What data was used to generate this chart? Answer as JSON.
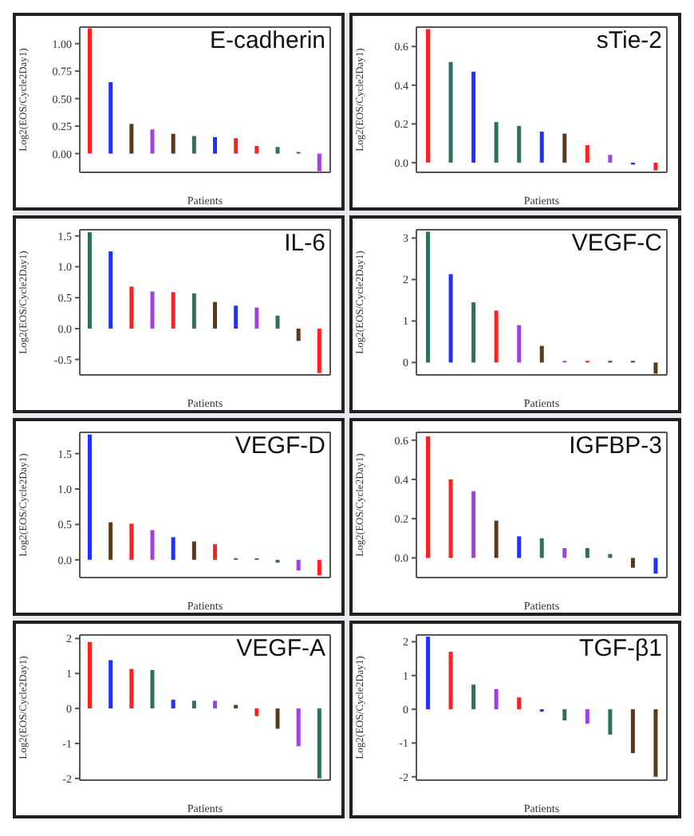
{
  "chart_data": [
    {
      "type": "bar",
      "title": "E-cadherin",
      "xlabel": "Patients",
      "ylabel": "Log2(EOS/Cycle2Day1)",
      "categories": [
        null,
        null,
        null,
        null,
        null,
        null,
        null,
        null,
        null,
        null,
        null,
        null
      ],
      "tick_labels": "y",
      "values": [
        1.14,
        0.65,
        0.27,
        0.22,
        0.18,
        0.16,
        0.15,
        0.14,
        0.07,
        0.06,
        0,
        -0.16
      ],
      "colors": [
        "#ff2020",
        "#2030ff",
        "#5a3a1a",
        "#a040e0",
        "#5a3a1a",
        "#2e7060",
        "#2030ff",
        "#ff2020",
        "#ff2020",
        "#2e7060",
        "#2e7060",
        "#a040e0"
      ],
      "ylim": [
        -0.17,
        1.15
      ],
      "yticks": [
        {
          "value": 0,
          "label": "0.00"
        },
        {
          "value": 0.25,
          "label": "0.25"
        },
        {
          "value": 0.5,
          "label": "0.50"
        },
        {
          "value": 0.75,
          "label": "0.75"
        },
        {
          "value": 1,
          "label": "1.00"
        }
      ],
      "grid": false
    },
    {
      "type": "bar",
      "title": "sTie-2",
      "xlabel": "Patients",
      "ylabel": "Log2(EOS/Cycle2Day1)",
      "categories": [
        null,
        null,
        null,
        null,
        null,
        null,
        null,
        null,
        null,
        null,
        null
      ],
      "tick_labels": "y",
      "values": [
        0.69,
        0.52,
        0.47,
        0.21,
        0.19,
        0.16,
        0.15,
        0.09,
        0.04,
        -0.01,
        -0.04
      ],
      "colors": [
        "#ff2020",
        "#2e7060",
        "#2030ff",
        "#2e7060",
        "#2e7060",
        "#2030ff",
        "#5a3a1a",
        "#ff2020",
        "#a040e0",
        "#2030ff",
        "#ff2020"
      ],
      "ylim": [
        -0.05,
        0.7
      ],
      "yticks": [
        {
          "value": 0,
          "label": "0.0"
        },
        {
          "value": 0.2,
          "label": "0.2"
        },
        {
          "value": 0.4,
          "label": "0.4"
        },
        {
          "value": 0.6,
          "label": "0.6"
        }
      ],
      "grid": false
    },
    {
      "type": "bar",
      "title": "IL-6",
      "xlabel": "Patients",
      "ylabel": "Log2(EOS/Cycle2Day1)",
      "categories": [
        null,
        null,
        null,
        null,
        null,
        null,
        null,
        null,
        null,
        null,
        null,
        null
      ],
      "tick_labels": "y",
      "values": [
        1.56,
        1.25,
        0.68,
        0.6,
        0.59,
        0.57,
        0.43,
        0.37,
        0.34,
        0.21,
        -0.2,
        -0.72
      ],
      "colors": [
        "#2e7060",
        "#2030ff",
        "#ff2020",
        "#a040e0",
        "#ff2020",
        "#2e7060",
        "#5a3a1a",
        "#2030ff",
        "#a040e0",
        "#2e7060",
        "#5a3a1a",
        "#ff2020"
      ],
      "ylim": [
        -0.75,
        1.6
      ],
      "yticks": [
        {
          "value": -0.5,
          "label": "-0.5"
        },
        {
          "value": 0,
          "label": "0.0"
        },
        {
          "value": 0.5,
          "label": "0.5"
        },
        {
          "value": 1,
          "label": "1.0"
        },
        {
          "value": 1.5,
          "label": "1.5"
        }
      ],
      "grid": false
    },
    {
      "type": "bar",
      "title": "VEGF-C",
      "xlabel": "Patients",
      "ylabel": "Log2(EOS/Cycle2Day1)",
      "categories": [
        null,
        null,
        null,
        null,
        null,
        null,
        null,
        null,
        null,
        null,
        null
      ],
      "tick_labels": "y",
      "values": [
        3.15,
        2.13,
        1.45,
        1.25,
        0.9,
        0.4,
        0.03,
        0.01,
        0,
        0,
        -0.27
      ],
      "colors": [
        "#2e7060",
        "#2030ff",
        "#2e7060",
        "#ff2020",
        "#a040e0",
        "#5a3a1a",
        "#a040e0",
        "#ff2020",
        "#5a3a1a",
        "#5a3a1a",
        "#5a3a1a"
      ],
      "ylim": [
        -0.3,
        3.2
      ],
      "yticks": [
        0,
        1,
        2,
        3
      ],
      "grid": false
    },
    {
      "type": "bar",
      "title": "VEGF-D",
      "xlabel": "Patients",
      "ylabel": "Log2(EOS/Cycle2Day1)",
      "categories": [
        null,
        null,
        null,
        null,
        null,
        null,
        null,
        null,
        null,
        null,
        null,
        null
      ],
      "tick_labels": "y",
      "values": [
        1.77,
        0.53,
        0.51,
        0.42,
        0.32,
        0.26,
        0.22,
        0.01,
        0,
        -0.04,
        -0.15,
        -0.22
      ],
      "colors": [
        "#2030ff",
        "#5a3a1a",
        "#ff2020",
        "#a040e0",
        "#2030ff",
        "#5a3a1a",
        "#ff2020",
        "#2e7060",
        "#2e7060",
        "#2e7060",
        "#a040e0",
        "#ff2020"
      ],
      "ylim": [
        -0.25,
        1.8
      ],
      "yticks": [
        {
          "value": 0,
          "label": "0.0"
        },
        {
          "value": 0.5,
          "label": "0.5"
        },
        {
          "value": 1,
          "label": "1.0"
        },
        {
          "value": 1.5,
          "label": "1.5"
        }
      ],
      "grid": false
    },
    {
      "type": "bar",
      "title": "IGFBP-3",
      "xlabel": "Patients",
      "ylabel": "Log2(EOS/Cycle2Day1)",
      "categories": [
        null,
        null,
        null,
        null,
        null,
        null,
        null,
        null,
        null,
        null,
        null
      ],
      "tick_labels": "y",
      "values": [
        0.62,
        0.4,
        0.34,
        0.19,
        0.11,
        0.1,
        0.05,
        0.05,
        0.02,
        -0.05,
        -0.08
      ],
      "colors": [
        "#ff2020",
        "#ff2020",
        "#a040e0",
        "#5a3a1a",
        "#2030ff",
        "#2e7060",
        "#a040e0",
        "#2e7060",
        "#2e7060",
        "#5a3a1a",
        "#2030ff"
      ],
      "ylim": [
        -0.1,
        0.64
      ],
      "yticks": [
        {
          "value": 0,
          "label": "0.0"
        },
        {
          "value": 0.2,
          "label": "0.2"
        },
        {
          "value": 0.4,
          "label": "0.4"
        },
        {
          "value": 0.6,
          "label": "0.6"
        }
      ],
      "grid": false
    },
    {
      "type": "bar",
      "title": "VEGF-A",
      "xlabel": "Patients",
      "ylabel": "Log2(EOS/Cycle2Day1)",
      "categories": [
        null,
        null,
        null,
        null,
        null,
        null,
        null,
        null,
        null,
        null,
        null,
        null
      ],
      "tick_labels": "y",
      "values": [
        1.9,
        1.38,
        1.13,
        1.1,
        0.25,
        0.22,
        0.22,
        0.1,
        -0.22,
        -0.58,
        -1.08,
        -2.0
      ],
      "colors": [
        "#ff2020",
        "#2030ff",
        "#ff2020",
        "#2e7060",
        "#2030ff",
        "#2e7060",
        "#a040e0",
        "#5a3a1a",
        "#ff2020",
        "#5a3a1a",
        "#a040e0",
        "#2e7060"
      ],
      "ylim": [
        -2.05,
        2.1
      ],
      "yticks": [
        -2,
        -1,
        0,
        1,
        2
      ],
      "grid": false
    },
    {
      "type": "bar",
      "title": "TGF-β1",
      "xlabel": "Patients",
      "ylabel": "Log2(EOS/Cycle2Day1)",
      "categories": [
        null,
        null,
        null,
        null,
        null,
        null,
        null,
        null,
        null,
        null,
        null
      ],
      "tick_labels": "y",
      "values": [
        2.15,
        1.7,
        0.73,
        0.6,
        0.35,
        -0.07,
        -0.33,
        -0.43,
        -0.75,
        -1.3,
        -2.0
      ],
      "colors": [
        "#2030ff",
        "#ff2020",
        "#2e7060",
        "#a040e0",
        "#ff2020",
        "#2030ff",
        "#2e7060",
        "#a040e0",
        "#2e7060",
        "#5a3a1a",
        "#5a3a1a"
      ],
      "ylim": [
        -2.1,
        2.2
      ],
      "yticks": [
        -2,
        -1,
        0,
        1,
        2
      ],
      "grid": false
    }
  ]
}
